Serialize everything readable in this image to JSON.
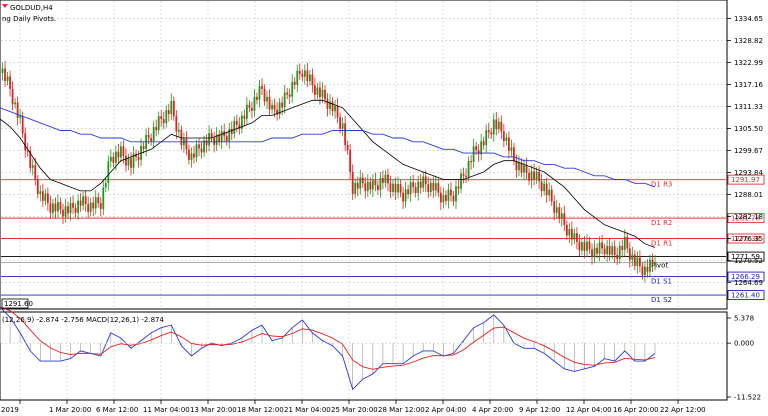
{
  "chart_title": "GOLDUD,H4",
  "indicator_note": "ng Daily Pivots.",
  "price_axis": {
    "ticks": [
      "1334.65",
      "1328.82",
      "1322.99",
      "1317.16",
      "1311.33",
      "1305.50",
      "1299.67",
      "1293.84",
      "1288.01",
      "1282.18",
      "1276.35",
      "1270.52",
      "1264.69"
    ],
    "min": 1258.5,
    "max": 1338.5
  },
  "time_axis": {
    "labels": [
      "2019",
      "1 Mar 20:00",
      "6 Mar 12:00",
      "11 Mar 04:00",
      "13 Mar 20:00",
      "18 Mar 12:00",
      "21 Mar 04:00",
      "25 Mar 20:00",
      "28 Mar 12:00",
      "2 Apr 04:00",
      "4 Apr 20:00",
      "9 Apr 12:00",
      "12 Apr 04:00",
      "16 Apr 20:00",
      "22 Apr 12:00"
    ]
  },
  "pivots": [
    {
      "name": "D1 R3",
      "price": 1291.97,
      "box": "1291.97",
      "color": "#e03030"
    },
    {
      "name": "D1 R2",
      "price": 1281.78,
      "box": "1281.78",
      "color": "#e03030"
    },
    {
      "name": "D1 R1",
      "price": 1276.38,
      "box": "1276.38",
      "color": "#e03030"
    },
    {
      "name": "Pivot",
      "price": 1270.0,
      "box": "",
      "color": "#a0a0a0"
    },
    {
      "name": "D1 S1",
      "price": 1266.29,
      "box": "1266.29",
      "color": "#2020c0"
    },
    {
      "name": "D1 S2",
      "price": 1261.4,
      "box": "1261.40",
      "color": "#2020c0"
    }
  ],
  "current_price": {
    "value": "1271.59",
    "color": "#000000"
  },
  "left_price_label": "1291.60",
  "macd": {
    "label": "(12,26,9) -2.874 -2.756 MACD(12,26,1) -2.874",
    "ticks": [
      "5.378",
      "0.000",
      "-11.522"
    ],
    "min": -11.522,
    "max": 5.378
  },
  "chart_data": {
    "type": "line",
    "title": "GOLDUD,H4",
    "x": [
      0,
      10,
      20,
      30,
      40,
      50,
      60,
      70,
      80,
      90,
      100,
      110,
      120,
      130,
      140,
      150,
      160,
      170,
      180,
      190,
      200,
      210,
      220,
      230,
      240,
      250,
      260,
      270,
      280,
      290,
      300,
      310,
      320,
      330,
      340,
      350,
      360,
      370,
      380,
      390,
      400,
      410,
      420,
      430,
      440,
      450,
      460,
      470,
      480,
      490,
      500,
      510,
      520,
      530,
      540,
      550,
      560,
      570,
      580,
      590,
      600,
      610,
      620,
      630,
      640,
      650
    ],
    "series": [
      {
        "values": [
          1322,
          1316,
          1307,
          1296,
          1288,
          1285,
          1284,
          1284,
          1286,
          1285,
          1286,
          1298,
          1299,
          1296,
          1300,
          1304,
          1308,
          1311,
          1302,
          1298,
          1301,
          1303,
          1303,
          1305,
          1308,
          1312,
          1316,
          1310,
          1312,
          1317,
          1321,
          1317,
          1314,
          1311,
          1306,
          1290,
          1291,
          1290,
          1292,
          1290,
          1288,
          1290,
          1291,
          1290,
          1287,
          1288,
          1293,
          1299,
          1302,
          1307,
          1304,
          1297,
          1294,
          1293,
          1290,
          1285,
          1280,
          1276,
          1274,
          1273,
          1274,
          1272,
          1275,
          1270,
          1268,
          1270
        ]
      },
      {
        "values": [
          1308,
          1306,
          1303,
          1299,
          1295,
          1292,
          1291,
          1290,
          1289,
          1289,
          1291,
          1294,
          1297,
          1298,
          1299,
          1300,
          1302,
          1304,
          1303,
          1303,
          1303,
          1303,
          1304,
          1305,
          1306,
          1307,
          1309,
          1309,
          1310,
          1311,
          1312,
          1313,
          1313,
          1312,
          1311,
          1308,
          1305,
          1302,
          1300,
          1298,
          1296,
          1295,
          1294,
          1293,
          1292,
          1292,
          1292,
          1293,
          1294,
          1296,
          1297,
          1297,
          1296,
          1295,
          1294,
          1292,
          1290,
          1287,
          1284,
          1282,
          1280,
          1279,
          1278,
          1277,
          1275,
          1274
        ]
      },
      {
        "values": [
          1311,
          1310,
          1309,
          1308,
          1307,
          1306,
          1305,
          1305,
          1304,
          1304,
          1303,
          1303,
          1303,
          1302,
          1302,
          1302,
          1302,
          1302,
          1302,
          1302,
          1302,
          1302,
          1302,
          1302,
          1302,
          1302,
          1302,
          1303,
          1303,
          1303,
          1304,
          1304,
          1304,
          1305,
          1305,
          1305,
          1305,
          1304,
          1304,
          1303,
          1303,
          1302,
          1302,
          1301,
          1300,
          1300,
          1299,
          1299,
          1299,
          1299,
          1298,
          1298,
          1297,
          1297,
          1296,
          1296,
          1295,
          1295,
          1294,
          1293,
          1293,
          1292,
          1292,
          1291,
          1291,
          1290
        ]
      }
    ],
    "ylim": [
      1258.5,
      1338.5
    ],
    "grid": true
  }
}
